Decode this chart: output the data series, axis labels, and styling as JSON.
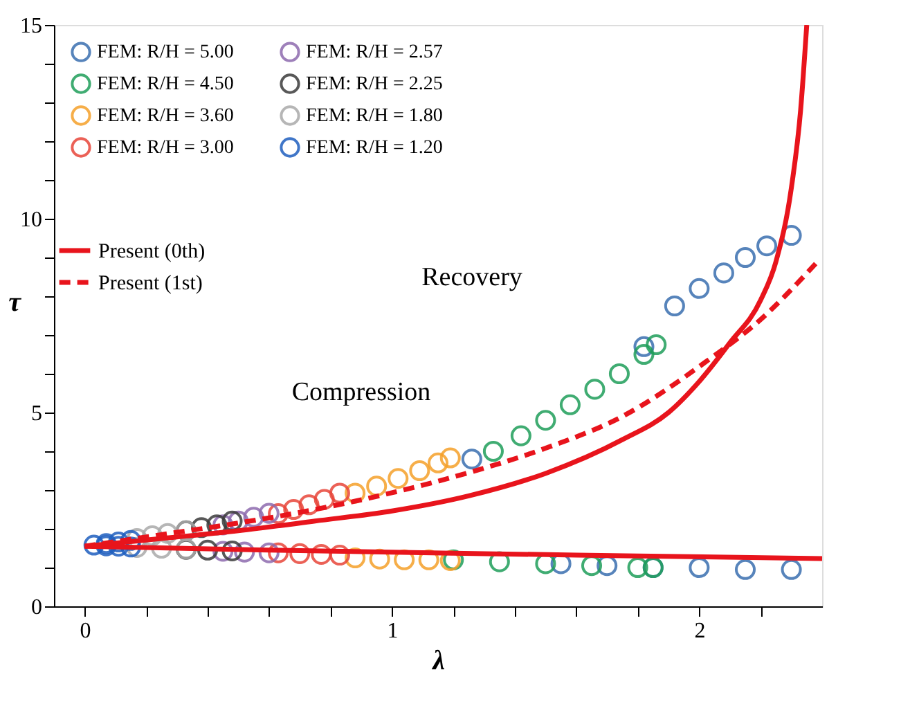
{
  "chart_data": {
    "type": "scatter",
    "xlabel": "λ",
    "ylabel": "τ",
    "xlim": [
      -0.1,
      2.4
    ],
    "ylim": [
      0,
      15
    ],
    "xticks": [
      0,
      {
        "value": 0.2,
        "label": null
      },
      {
        "value": 0.4,
        "label": null
      },
      {
        "value": 0.6,
        "label": null
      },
      {
        "value": 0.8,
        "label": null
      },
      1,
      {
        "value": 1.2,
        "label": null
      },
      {
        "value": 1.4,
        "label": null
      },
      {
        "value": 1.6,
        "label": null
      },
      {
        "value": 1.8,
        "label": null
      },
      2,
      {
        "value": 2.2,
        "label": null
      }
    ],
    "yticks": [
      0,
      {
        "value": 1,
        "label": null
      },
      {
        "value": 2,
        "label": null
      },
      {
        "value": 3,
        "label": null
      },
      {
        "value": 4,
        "label": null
      },
      5,
      {
        "value": 6,
        "label": null
      },
      {
        "value": 7,
        "label": null
      },
      {
        "value": 8,
        "label": null
      },
      {
        "value": 9,
        "label": null
      },
      10,
      {
        "value": 11,
        "label": null
      },
      {
        "value": 12,
        "label": null
      },
      {
        "value": 13,
        "label": null
      },
      {
        "value": 14,
        "label": null
      },
      15
    ],
    "grid": false,
    "legend": "top left",
    "marker": "circle",
    "annotations": [
      "Compression",
      "Recovery"
    ],
    "series": [
      {
        "name": "FEM: R/H = 5.00",
        "color": "#3a6fb0",
        "x": [
          1.26,
          1.82,
          1.92,
          2.0,
          2.08,
          2.15,
          2.22,
          2.3,
          1.55,
          1.7,
          1.85,
          2.0,
          2.15,
          2.3
        ],
        "values": [
          3.8,
          6.7,
          7.75,
          8.2,
          8.6,
          9.0,
          9.3,
          9.57,
          1.1,
          1.05,
          1.0,
          1.0,
          0.95,
          0.95
        ]
      },
      {
        "name": "FEM: R/H = 4.50",
        "color": "#1f9e5a",
        "x": [
          1.33,
          1.42,
          1.5,
          1.58,
          1.66,
          1.74,
          1.82,
          1.86,
          1.2,
          1.35,
          1.5,
          1.65,
          1.8,
          1.85
        ],
        "values": [
          4.0,
          4.4,
          4.8,
          5.2,
          5.6,
          6.0,
          6.5,
          6.75,
          1.2,
          1.15,
          1.1,
          1.05,
          1.0,
          1.0
        ]
      },
      {
        "name": "FEM: R/H = 3.60",
        "color": "#f5a02a",
        "x": [
          0.88,
          0.95,
          1.02,
          1.09,
          1.15,
          1.19,
          0.88,
          0.96,
          1.04,
          1.12,
          1.19
        ],
        "values": [
          2.92,
          3.1,
          3.3,
          3.5,
          3.7,
          3.83,
          1.25,
          1.22,
          1.2,
          1.2,
          1.18
        ]
      },
      {
        "name": "FEM: R/H = 3.00",
        "color": "#e8463a",
        "x": [
          0.63,
          0.68,
          0.73,
          0.78,
          0.83,
          0.63,
          0.7,
          0.77,
          0.83
        ],
        "values": [
          2.39,
          2.5,
          2.62,
          2.76,
          2.92,
          1.38,
          1.36,
          1.34,
          1.32
        ]
      },
      {
        "name": "FEM: R/H = 2.57",
        "color": "#8e6bae",
        "x": [
          0.45,
          0.5,
          0.55,
          0.6,
          0.45,
          0.52,
          0.6
        ],
        "values": [
          2.1,
          2.2,
          2.3,
          2.4,
          1.42,
          1.4,
          1.38
        ]
      },
      {
        "name": "FEM: R/H = 2.25",
        "color": "#3b3b3b",
        "x": [
          0.33,
          0.38,
          0.43,
          0.48,
          0.33,
          0.4,
          0.48
        ],
        "values": [
          1.95,
          2.03,
          2.1,
          2.2,
          1.47,
          1.45,
          1.43
        ]
      },
      {
        "name": "FEM: R/H = 1.80",
        "color": "#aaaaaa",
        "x": [
          0.17,
          0.22,
          0.27,
          0.33,
          0.17,
          0.25,
          0.33
        ],
        "values": [
          1.75,
          1.82,
          1.88,
          1.95,
          1.52,
          1.5,
          1.48
        ]
      },
      {
        "name": "FEM: R/H = 1.20",
        "color": "#1f5fbf",
        "x": [
          0.03,
          0.07,
          0.11,
          0.15,
          0.07,
          0.11,
          0.15
        ],
        "values": [
          1.58,
          1.62,
          1.66,
          1.7,
          1.56,
          1.55,
          1.53
        ]
      },
      {
        "name": "Present (0th)",
        "type": "line",
        "line_style": "solid",
        "marker": "none",
        "color": "#e8141c",
        "x": [
          0,
          0.25,
          0.5,
          0.75,
          1.0,
          1.25,
          1.5,
          1.75,
          1.9,
          2.0,
          2.1,
          2.2,
          2.25,
          2.3,
          2.33,
          2.35
        ],
        "values": [
          1.55,
          1.75,
          1.95,
          2.2,
          2.46,
          2.85,
          3.43,
          4.3,
          5.0,
          5.8,
          6.8,
          7.9,
          8.9,
          10.8,
          12.8,
          15.0
        ]
      },
      {
        "name": "Present (1st)",
        "type": "line",
        "line_style": "dashed",
        "marker": "none",
        "color": "#e8141c",
        "x": [
          0,
          0.25,
          0.5,
          0.75,
          1.0,
          1.25,
          1.5,
          1.75,
          2.02,
          2.2,
          2.38
        ],
        "values": [
          1.55,
          1.85,
          2.15,
          2.5,
          2.93,
          3.45,
          4.08,
          4.9,
          6.3,
          7.4,
          8.85
        ]
      },
      {
        "type": "line",
        "line_style": "solid",
        "marker": "none",
        "color": "#e8141c",
        "x": [
          0,
          0.6,
          1.2,
          1.8,
          2.4
        ],
        "values": [
          1.55,
          1.45,
          1.37,
          1.3,
          1.23
        ]
      }
    ]
  }
}
